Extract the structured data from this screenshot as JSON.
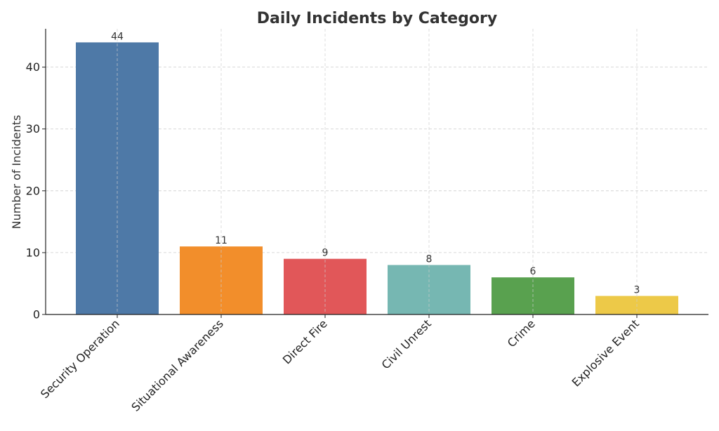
{
  "chart_data": {
    "type": "bar",
    "title": "Daily Incidents by Category",
    "xlabel": "",
    "ylabel": "Number of Incidents",
    "categories": [
      "Security Operation",
      "Situational Awareness",
      "Direct Fire",
      "Civil Unrest",
      "Crime",
      "Explosive Event"
    ],
    "values": [
      44,
      11,
      9,
      8,
      6,
      3
    ],
    "colors": [
      "#4e79a7",
      "#f28e2b",
      "#e15759",
      "#76b7b2",
      "#59a14f",
      "#edc948"
    ],
    "ylim": [
      0,
      46.2
    ],
    "yticks": [
      0,
      10,
      20,
      30,
      40
    ],
    "grid": true,
    "data_labels": true
  }
}
